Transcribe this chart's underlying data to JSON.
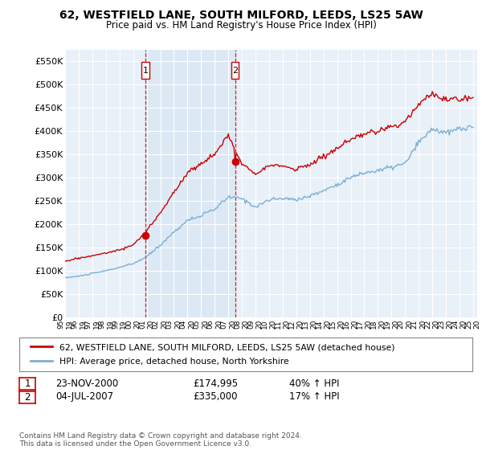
{
  "title": "62, WESTFIELD LANE, SOUTH MILFORD, LEEDS, LS25 5AW",
  "subtitle": "Price paid vs. HM Land Registry's House Price Index (HPI)",
  "ylim": [
    0,
    575000
  ],
  "yticks": [
    0,
    50000,
    100000,
    150000,
    200000,
    250000,
    300000,
    350000,
    400000,
    450000,
    500000,
    550000
  ],
  "ytick_labels": [
    "£0",
    "£50K",
    "£100K",
    "£150K",
    "£200K",
    "£250K",
    "£300K",
    "£350K",
    "£400K",
    "£450K",
    "£500K",
    "£550K"
  ],
  "hpi_color": "#7bafd4",
  "sale_color": "#cc0000",
  "shade_color": "#dce9f5",
  "sale1_year_float": 2000.9167,
  "sale2_year_float": 2007.5,
  "marker1_price": 174995,
  "marker2_price": 335000,
  "legend_sale_label": "62, WESTFIELD LANE, SOUTH MILFORD, LEEDS, LS25 5AW (detached house)",
  "legend_hpi_label": "HPI: Average price, detached house, North Yorkshire",
  "table_row1": [
    "1",
    "23-NOV-2000",
    "£174,995",
    "40% ↑ HPI"
  ],
  "table_row2": [
    "2",
    "04-JUL-2007",
    "£335,000",
    "17% ↑ HPI"
  ],
  "footnote": "Contains HM Land Registry data © Crown copyright and database right 2024.\nThis data is licensed under the Open Government Licence v3.0.",
  "background_color": "#ffffff",
  "plot_bg_color": "#e8f0f8",
  "grid_color": "#ffffff",
  "hpi_anchors": {
    "1995": 85000,
    "1996": 88000,
    "1997": 94000,
    "1998": 100000,
    "1999": 107000,
    "2000": 115000,
    "2001": 130000,
    "2002": 155000,
    "2003": 183000,
    "2004": 208000,
    "2005": 218000,
    "2006": 232000,
    "2007": 258000,
    "2008": 255000,
    "2009": 237000,
    "2010": 252000,
    "2011": 255000,
    "2012": 253000,
    "2013": 260000,
    "2014": 272000,
    "2015": 285000,
    "2016": 300000,
    "2017": 310000,
    "2018": 315000,
    "2019": 322000,
    "2020": 330000,
    "2021": 375000,
    "2022": 405000,
    "2023": 395000,
    "2024": 405000,
    "2025": 408000
  },
  "sale_anchors": {
    "1995": 120000,
    "1996": 127000,
    "1997": 132000,
    "1998": 138000,
    "1999": 145000,
    "2000": 155000,
    "2001": 185000,
    "2002": 225000,
    "2003": 268000,
    "2004": 310000,
    "2005": 330000,
    "2006": 350000,
    "2007": 390000,
    "2008": 330000,
    "2009": 310000,
    "2010": 325000,
    "2011": 325000,
    "2012": 318000,
    "2013": 328000,
    "2014": 345000,
    "2015": 362000,
    "2016": 380000,
    "2017": 393000,
    "2018": 400000,
    "2019": 408000,
    "2020": 420000,
    "2021": 460000,
    "2022": 480000,
    "2023": 465000,
    "2024": 470000,
    "2025": 472000
  }
}
